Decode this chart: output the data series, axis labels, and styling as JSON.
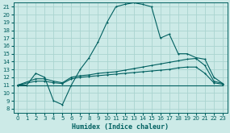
{
  "xlabel": "Humidex (Indice chaleur)",
  "bg_color": "#cceae7",
  "grid_color": "#aad4d0",
  "line_color": "#006060",
  "xlim": [
    -0.5,
    23.5
  ],
  "ylim": [
    7.5,
    21.5
  ],
  "xticks": [
    0,
    1,
    2,
    3,
    4,
    5,
    6,
    7,
    8,
    9,
    10,
    11,
    12,
    13,
    14,
    15,
    16,
    17,
    18,
    19,
    20,
    21,
    22,
    23
  ],
  "yticks": [
    8,
    9,
    10,
    11,
    12,
    13,
    14,
    15,
    16,
    17,
    18,
    19,
    20,
    21
  ],
  "curve1_x": [
    0,
    1,
    2,
    3,
    4,
    5,
    6,
    7,
    8,
    9,
    10,
    11,
    12,
    13,
    14,
    15,
    16,
    17,
    18,
    19,
    20,
    21,
    22,
    23
  ],
  "curve1_y": [
    11,
    11,
    12.5,
    12,
    9,
    8.5,
    11,
    13,
    14.5,
    16.5,
    19,
    21,
    21.3,
    21.5,
    21.3,
    21,
    17,
    17.5,
    15,
    15,
    14.5,
    14.3,
    12,
    11.2
  ],
  "curve2_x": [
    0,
    1,
    2,
    3,
    4,
    5,
    6,
    7,
    8,
    9,
    10,
    11,
    12,
    13,
    14,
    15,
    16,
    17,
    18,
    19,
    20,
    21,
    22,
    23
  ],
  "curve2_y": [
    11,
    11,
    11,
    11,
    11,
    11,
    11,
    11,
    11,
    11,
    11,
    11,
    11,
    11,
    11,
    11,
    11,
    11,
    11,
    11,
    11,
    11,
    11,
    11
  ],
  "curve3_x": [
    0,
    2,
    3,
    4,
    5,
    6,
    7,
    8,
    9,
    10,
    11,
    12,
    13,
    14,
    15,
    16,
    17,
    18,
    19,
    20,
    21,
    22,
    23
  ],
  "curve3_y": [
    11,
    11.8,
    11.8,
    11.5,
    11.3,
    12,
    12.2,
    12.3,
    12.5,
    12.6,
    12.7,
    12.9,
    13.1,
    13.3,
    13.5,
    13.7,
    13.9,
    14.1,
    14.3,
    14.4,
    13.5,
    11.5,
    11.2
  ],
  "curve4_x": [
    0,
    2,
    3,
    4,
    5,
    6,
    7,
    8,
    9,
    10,
    11,
    12,
    13,
    14,
    15,
    16,
    17,
    18,
    19,
    20,
    21,
    22,
    23
  ],
  "curve4_y": [
    11,
    11.5,
    11.5,
    11.3,
    11.2,
    11.8,
    12.0,
    12.1,
    12.2,
    12.3,
    12.4,
    12.5,
    12.6,
    12.7,
    12.8,
    12.9,
    13.0,
    13.2,
    13.3,
    13.3,
    12.5,
    11.3,
    11.1
  ]
}
